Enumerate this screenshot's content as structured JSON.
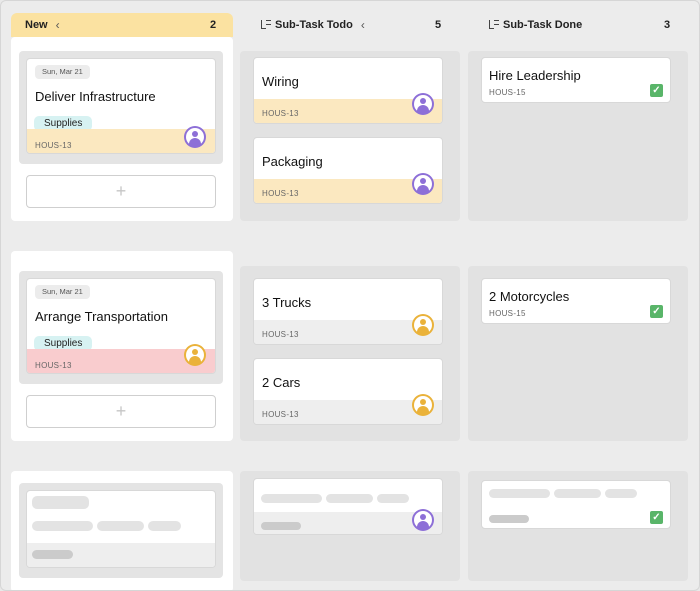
{
  "headers": {
    "new": {
      "title": "New",
      "count": "2",
      "chevron": "chevron-left-icon"
    },
    "todo": {
      "title": "Sub-Task Todo",
      "count": "5",
      "icon": "subtask-icon",
      "chevron": "chevron-left-icon"
    },
    "done": {
      "title": "Sub-Task Done",
      "count": "3",
      "icon": "subtask-icon"
    }
  },
  "parents": [
    {
      "date": "Sun, Mar 21",
      "title": "Deliver Infrastructure",
      "tag": "Supplies",
      "id": "HOUS-13",
      "add": "+"
    },
    {
      "date": "Sun, Mar 21",
      "title": "Arrange Transportation",
      "tag": "Supplies",
      "id": "HOUS-13",
      "add": "+"
    }
  ],
  "todo": [
    {
      "title": "Wiring",
      "id": "HOUS-13"
    },
    {
      "title": "Packaging",
      "id": "HOUS-13"
    },
    {
      "title": "3 Trucks",
      "id": "HOUS-13"
    },
    {
      "title": "2 Cars",
      "id": "HOUS-13"
    }
  ],
  "done": [
    {
      "title": "Hire Leadership",
      "id": "HOUS-15",
      "check": "✓"
    },
    {
      "title": "2 Motorcycles",
      "id": "HOUS-15",
      "check": "✓"
    }
  ],
  "colors": {
    "new_header": "#fbe2a1",
    "footer_yellow": "#fbe8c0",
    "footer_pink": "#f9ccce",
    "tag": "#d7f2f2",
    "check": "#59b569",
    "avatar_purple": "#8d6fd7",
    "avatar_gold": "#eab23a"
  }
}
